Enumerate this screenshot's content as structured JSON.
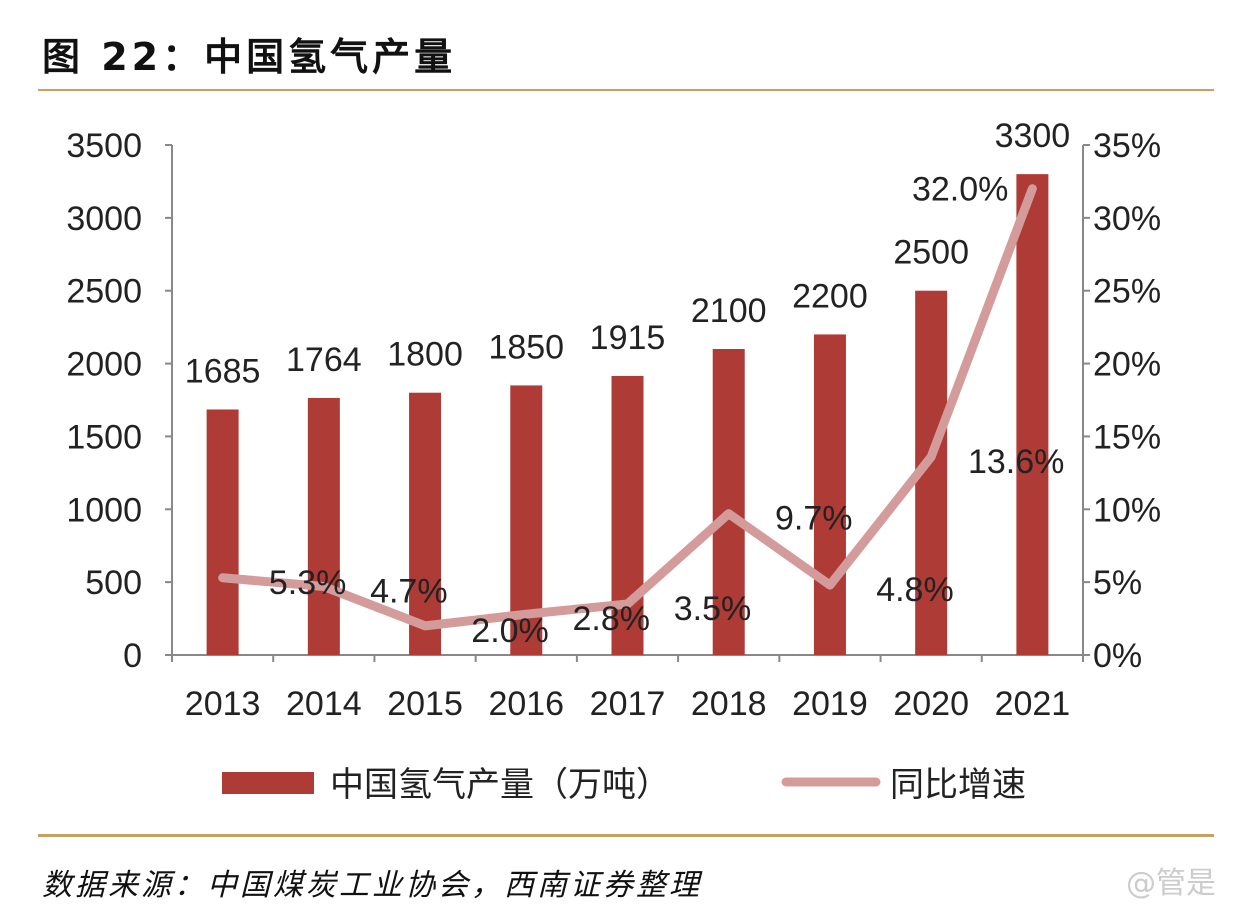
{
  "header": {
    "title": "图 22：中国氢气产量"
  },
  "footer": {
    "source": "数据来源：中国煤炭工业协会，西南证券整理",
    "watermark": "@管是"
  },
  "colors": {
    "bar": "#ae3b36",
    "line": "#d49b9b",
    "rule": "#c8a060"
  },
  "chart_data": {
    "type": "bar",
    "title": "中国氢气产量",
    "categories": [
      "2013",
      "2014",
      "2015",
      "2016",
      "2017",
      "2018",
      "2019",
      "2020",
      "2021"
    ],
    "series": [
      {
        "name": "中国氢气产量（万吨）",
        "type": "bar",
        "axis": "left",
        "values": [
          1685,
          1764,
          1800,
          1850,
          1915,
          2100,
          2200,
          2500,
          3300
        ],
        "labels": [
          "1685",
          "1764",
          "1800",
          "1850",
          "1915",
          "2100",
          "2200",
          "2500",
          "3300"
        ]
      },
      {
        "name": "同比增速",
        "type": "line",
        "axis": "right",
        "values": [
          5.3,
          4.7,
          2.0,
          2.8,
          3.5,
          9.7,
          4.8,
          13.6,
          32.0
        ],
        "labels": [
          "5.3%",
          "4.7%",
          "2.0%",
          "2.8%",
          "3.5%",
          "9.7%",
          "4.8%",
          "13.6%",
          "32.0%"
        ]
      }
    ],
    "ylim": [
      0,
      3500
    ],
    "yticks": [
      "0",
      "500",
      "1000",
      "1500",
      "2000",
      "2500",
      "3000",
      "3500"
    ],
    "y2lim": [
      0,
      35
    ],
    "y2ticks": [
      "0%",
      "5%",
      "10%",
      "15%",
      "20%",
      "25%",
      "30%",
      "35%"
    ],
    "legend": "bottom",
    "grid": false
  }
}
